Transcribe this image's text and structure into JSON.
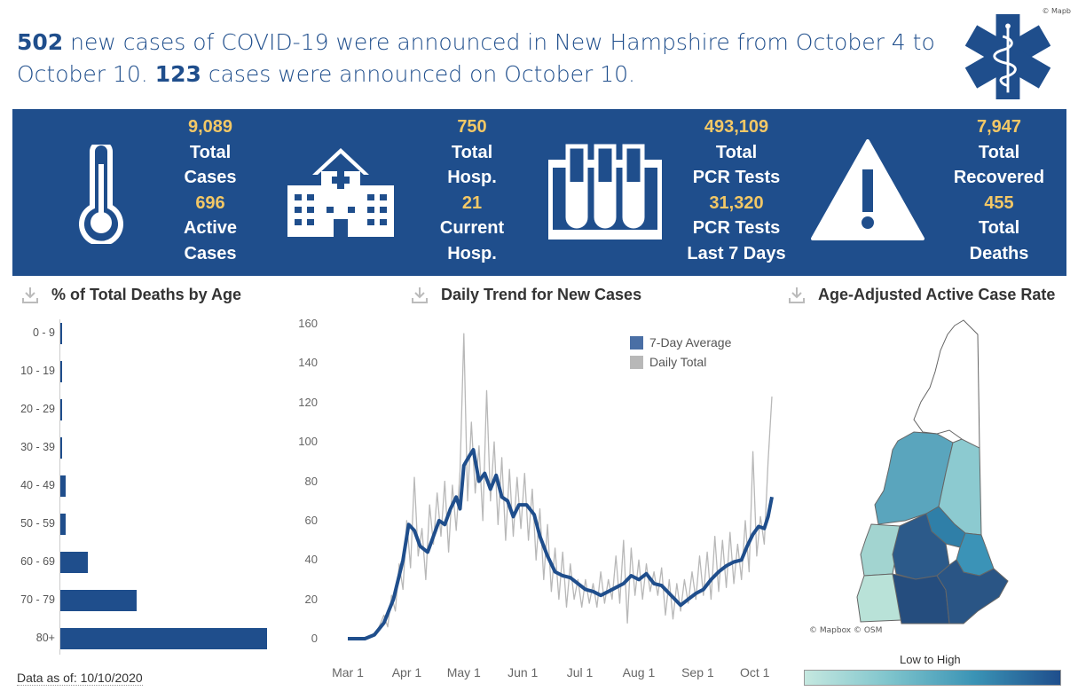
{
  "headline": {
    "part1_num": "502",
    "part1_text": " new cases of COVID-19 were announced in New Hampshire from October 4 to October 10. ",
    "part2_num": "123",
    "part2_text": " cases were announced on October 10."
  },
  "copyright_top": "© Mapb",
  "stats": {
    "total_cases": {
      "value": "9,089",
      "label1": "Total",
      "label2": "Cases"
    },
    "active_cases": {
      "value": "696",
      "label1": "Active",
      "label2": "Cases"
    },
    "total_hosp": {
      "value": "750",
      "label1": "Total",
      "label2": "Hosp."
    },
    "current_hosp": {
      "value": "21",
      "label1": "Current",
      "label2": "Hosp."
    },
    "pcr_total": {
      "value": "493,109",
      "label1": "Total",
      "label2": "PCR Tests"
    },
    "pcr_7days": {
      "value": "31,320",
      "label1": "PCR Tests",
      "label2": "Last 7 Days"
    },
    "total_recovered": {
      "value": "7,947",
      "label1": "Total",
      "label2": "Recovered"
    },
    "total_deaths": {
      "value": "455",
      "label1": "Total",
      "label2": "Deaths"
    }
  },
  "panels": {
    "deaths_by_age_title": "% of Total Deaths by Age",
    "daily_trend_title": "Daily Trend for New Cases",
    "active_rate_title": "Age-Adjusted Active Case Rate"
  },
  "data_as_of": "Data as of: 10/10/2020",
  "map": {
    "credit": "© Mapbox © OSM",
    "scale_label": "Low to High"
  },
  "colors": {
    "brand_blue": "#1f4e8c",
    "stat_yellow": "#f3c866",
    "daily_gray": "#b8b8b8"
  },
  "chart_data": [
    {
      "type": "bar",
      "title": "% of Total Deaths by Age",
      "orientation": "horizontal",
      "categories": [
        "0 - 9",
        "10 - 19",
        "20 - 29",
        "30 - 39",
        "40 - 49",
        "50 - 59",
        "60 - 69",
        "70 - 79",
        "80+"
      ],
      "values": [
        0,
        0,
        0,
        0,
        0.9,
        0.9,
        4.8,
        13.1,
        35.6
      ]
    },
    {
      "type": "line",
      "title": "Daily Trend for New Cases",
      "x_ticks": [
        "Mar 1",
        "Apr 1",
        "May 1",
        "Jun 1",
        "Jul 1",
        "Aug 1",
        "Sep 1",
        "Oct 1"
      ],
      "y_ticks": [
        "0",
        "20",
        "40",
        "60",
        "80",
        "100",
        "120",
        "140",
        "160"
      ],
      "ylim": [
        0,
        160
      ],
      "x_range": [
        "2020-03-01",
        "2020-10-10"
      ],
      "legend": "top-right",
      "series": [
        {
          "name": "7-Day Average",
          "color": "#1f4e8c",
          "points": [
            [
              "2020-03-01",
              0
            ],
            [
              "2020-03-10",
              0
            ],
            [
              "2020-03-15",
              2
            ],
            [
              "2020-03-20",
              8
            ],
            [
              "2020-03-25",
              20
            ],
            [
              "2020-03-30",
              40
            ],
            [
              "2020-04-02",
              58
            ],
            [
              "2020-04-05",
              55
            ],
            [
              "2020-04-08",
              47
            ],
            [
              "2020-04-12",
              44
            ],
            [
              "2020-04-15",
              52
            ],
            [
              "2020-04-18",
              60
            ],
            [
              "2020-04-21",
              58
            ],
            [
              "2020-04-24",
              66
            ],
            [
              "2020-04-27",
              72
            ],
            [
              "2020-04-29",
              66
            ],
            [
              "2020-05-01",
              88
            ],
            [
              "2020-05-04",
              93
            ],
            [
              "2020-05-06",
              96
            ],
            [
              "2020-05-09",
              80
            ],
            [
              "2020-05-12",
              84
            ],
            [
              "2020-05-15",
              76
            ],
            [
              "2020-05-18",
              83
            ],
            [
              "2020-05-21",
              72
            ],
            [
              "2020-05-24",
              70
            ],
            [
              "2020-05-27",
              62
            ],
            [
              "2020-05-30",
              68
            ],
            [
              "2020-06-03",
              68
            ],
            [
              "2020-06-07",
              63
            ],
            [
              "2020-06-10",
              52
            ],
            [
              "2020-06-14",
              42
            ],
            [
              "2020-06-18",
              34
            ],
            [
              "2020-06-22",
              32
            ],
            [
              "2020-06-26",
              31
            ],
            [
              "2020-06-30",
              28
            ],
            [
              "2020-07-04",
              25
            ],
            [
              "2020-07-08",
              24
            ],
            [
              "2020-07-12",
              22
            ],
            [
              "2020-07-16",
              24
            ],
            [
              "2020-07-20",
              26
            ],
            [
              "2020-07-24",
              28
            ],
            [
              "2020-07-28",
              32
            ],
            [
              "2020-08-01",
              30
            ],
            [
              "2020-08-05",
              33
            ],
            [
              "2020-08-09",
              28
            ],
            [
              "2020-08-13",
              27
            ],
            [
              "2020-08-17",
              23
            ],
            [
              "2020-08-20",
              20
            ],
            [
              "2020-08-23",
              17
            ],
            [
              "2020-08-27",
              20
            ],
            [
              "2020-08-31",
              23
            ],
            [
              "2020-09-04",
              25
            ],
            [
              "2020-09-08",
              30
            ],
            [
              "2020-09-12",
              34
            ],
            [
              "2020-09-16",
              37
            ],
            [
              "2020-09-20",
              39
            ],
            [
              "2020-09-24",
              40
            ],
            [
              "2020-09-27",
              47
            ],
            [
              "2020-09-30",
              53
            ],
            [
              "2020-10-03",
              57
            ],
            [
              "2020-10-06",
              56
            ],
            [
              "2020-10-08",
              62
            ],
            [
              "2020-10-10",
              72
            ]
          ]
        },
        {
          "name": "Daily Total",
          "color": "#b8b8b8",
          "points": [
            [
              "2020-03-01",
              0
            ],
            [
              "2020-03-10",
              0
            ],
            [
              "2020-03-14",
              2
            ],
            [
              "2020-03-17",
              5
            ],
            [
              "2020-03-20",
              12
            ],
            [
              "2020-03-22",
              6
            ],
            [
              "2020-03-24",
              22
            ],
            [
              "2020-03-26",
              14
            ],
            [
              "2020-03-28",
              38
            ],
            [
              "2020-03-30",
              25
            ],
            [
              "2020-04-01",
              60
            ],
            [
              "2020-04-03",
              36
            ],
            [
              "2020-04-05",
              82
            ],
            [
              "2020-04-07",
              42
            ],
            [
              "2020-04-09",
              56
            ],
            [
              "2020-04-11",
              30
            ],
            [
              "2020-04-13",
              68
            ],
            [
              "2020-04-15",
              48
            ],
            [
              "2020-04-17",
              74
            ],
            [
              "2020-04-19",
              52
            ],
            [
              "2020-04-21",
              80
            ],
            [
              "2020-04-23",
              44
            ],
            [
              "2020-04-25",
              78
            ],
            [
              "2020-04-27",
              55
            ],
            [
              "2020-04-29",
              85
            ],
            [
              "2020-05-01",
              155
            ],
            [
              "2020-05-03",
              70
            ],
            [
              "2020-05-05",
              110
            ],
            [
              "2020-05-07",
              74
            ],
            [
              "2020-05-09",
              98
            ],
            [
              "2020-05-11",
              60
            ],
            [
              "2020-05-13",
              126
            ],
            [
              "2020-05-15",
              70
            ],
            [
              "2020-05-17",
              100
            ],
            [
              "2020-05-19",
              58
            ],
            [
              "2020-05-21",
              92
            ],
            [
              "2020-05-23",
              50
            ],
            [
              "2020-05-25",
              86
            ],
            [
              "2020-05-27",
              52
            ],
            [
              "2020-05-29",
              82
            ],
            [
              "2020-05-31",
              56
            ],
            [
              "2020-06-02",
              84
            ],
            [
              "2020-06-04",
              50
            ],
            [
              "2020-06-06",
              76
            ],
            [
              "2020-06-08",
              40
            ],
            [
              "2020-06-10",
              66
            ],
            [
              "2020-06-12",
              30
            ],
            [
              "2020-06-14",
              58
            ],
            [
              "2020-06-16",
              24
            ],
            [
              "2020-06-18",
              46
            ],
            [
              "2020-06-20",
              20
            ],
            [
              "2020-06-22",
              44
            ],
            [
              "2020-06-24",
              16
            ],
            [
              "2020-06-26",
              38
            ],
            [
              "2020-06-28",
              20
            ],
            [
              "2020-06-30",
              30
            ],
            [
              "2020-07-02",
              16
            ],
            [
              "2020-07-04",
              30
            ],
            [
              "2020-07-06",
              18
            ],
            [
              "2020-07-08",
              28
            ],
            [
              "2020-07-10",
              16
            ],
            [
              "2020-07-12",
              34
            ],
            [
              "2020-07-14",
              18
            ],
            [
              "2020-07-16",
              30
            ],
            [
              "2020-07-18",
              20
            ],
            [
              "2020-07-20",
              42
            ],
            [
              "2020-07-22",
              18
            ],
            [
              "2020-07-24",
              50
            ],
            [
              "2020-07-26",
              8
            ],
            [
              "2020-07-28",
              46
            ],
            [
              "2020-07-30",
              22
            ],
            [
              "2020-08-01",
              40
            ],
            [
              "2020-08-03",
              20
            ],
            [
              "2020-08-05",
              38
            ],
            [
              "2020-08-07",
              24
            ],
            [
              "2020-08-09",
              34
            ],
            [
              "2020-08-11",
              22
            ],
            [
              "2020-08-13",
              36
            ],
            [
              "2020-08-15",
              12
            ],
            [
              "2020-08-17",
              30
            ],
            [
              "2020-08-19",
              10
            ],
            [
              "2020-08-21",
              28
            ],
            [
              "2020-08-23",
              14
            ],
            [
              "2020-08-25",
              30
            ],
            [
              "2020-08-27",
              18
            ],
            [
              "2020-08-29",
              34
            ],
            [
              "2020-08-31",
              20
            ],
            [
              "2020-09-02",
              42
            ],
            [
              "2020-09-04",
              22
            ],
            [
              "2020-09-06",
              44
            ],
            [
              "2020-09-08",
              20
            ],
            [
              "2020-09-10",
              52
            ],
            [
              "2020-09-12",
              24
            ],
            [
              "2020-09-14",
              50
            ],
            [
              "2020-09-16",
              26
            ],
            [
              "2020-09-18",
              54
            ],
            [
              "2020-09-20",
              28
            ],
            [
              "2020-09-22",
              48
            ],
            [
              "2020-09-24",
              30
            ],
            [
              "2020-09-26",
              60
            ],
            [
              "2020-09-28",
              34
            ],
            [
              "2020-09-30",
              95
            ],
            [
              "2020-10-02",
              42
            ],
            [
              "2020-10-04",
              62
            ],
            [
              "2020-10-06",
              48
            ],
            [
              "2020-10-08",
              90
            ],
            [
              "2020-10-10",
              123
            ]
          ]
        }
      ]
    }
  ]
}
